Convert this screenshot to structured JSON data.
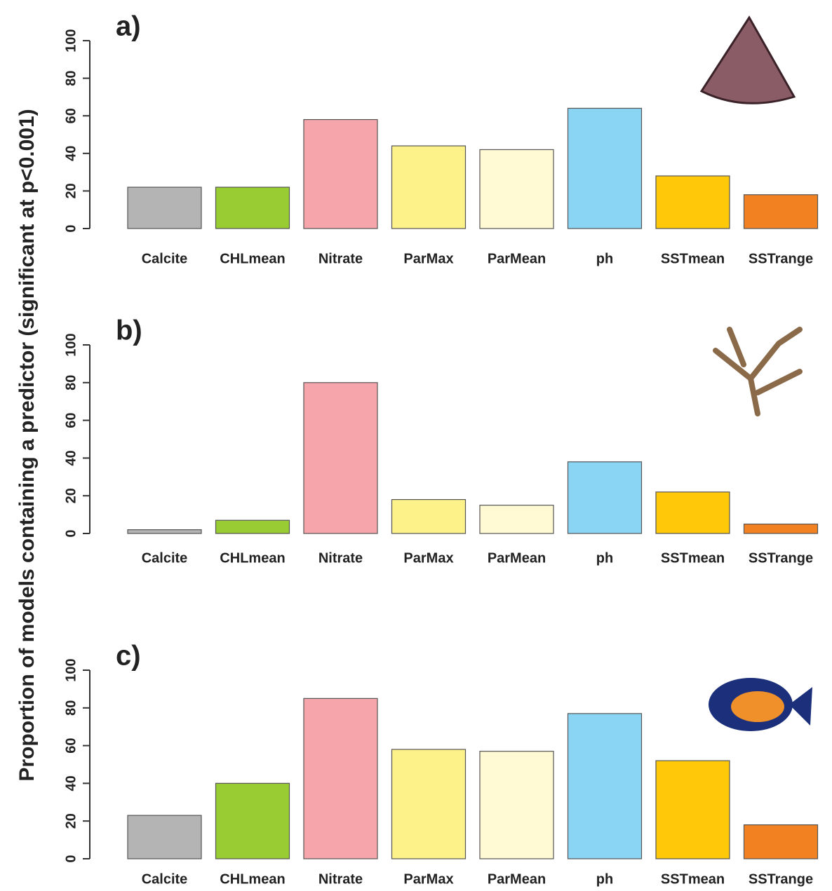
{
  "ylabel": "Proportion of models containing a predictor (significant at p<0.001)",
  "chart_data": [
    {
      "type": "bar",
      "title": "a)",
      "categories": [
        "Calcite",
        "CHLmean",
        "Nitrate",
        "ParMax",
        "ParMean",
        "ph",
        "SSTmean",
        "SSTrange"
      ],
      "values": [
        22,
        22,
        58,
        44,
        42,
        64,
        28,
        18
      ],
      "colors": [
        "#b4b4b4",
        "#99cc33",
        "#f6a6aa",
        "#fdf18a",
        "#fff9d4",
        "#8ad4f4",
        "#ffc90a",
        "#f28122"
      ],
      "ylim": [
        0,
        100
      ],
      "yticks": [
        0,
        20,
        40,
        60,
        80,
        100
      ]
    },
    {
      "type": "bar",
      "title": "b)",
      "categories": [
        "Calcite",
        "CHLmean",
        "Nitrate",
        "ParMax",
        "ParMean",
        "ph",
        "SSTmean",
        "SSTrange"
      ],
      "values": [
        2,
        7,
        80,
        18,
        15,
        38,
        22,
        5
      ],
      "colors": [
        "#b4b4b4",
        "#99cc33",
        "#f6a6aa",
        "#fdf18a",
        "#fff9d4",
        "#8ad4f4",
        "#ffc90a",
        "#f28122"
      ],
      "ylim": [
        0,
        100
      ],
      "yticks": [
        0,
        20,
        40,
        60,
        80,
        100
      ]
    },
    {
      "type": "bar",
      "title": "c)",
      "categories": [
        "Calcite",
        "CHLmean",
        "Nitrate",
        "ParMax",
        "ParMean",
        "ph",
        "SSTmean",
        "SSTrange"
      ],
      "values": [
        23,
        40,
        85,
        58,
        57,
        77,
        52,
        18
      ],
      "colors": [
        "#b4b4b4",
        "#99cc33",
        "#f6a6aa",
        "#fdf18a",
        "#fff9d4",
        "#8ad4f4",
        "#ffc90a",
        "#f28122"
      ],
      "ylim": [
        0,
        100
      ],
      "yticks": [
        0,
        20,
        40,
        60,
        80,
        100
      ]
    }
  ]
}
